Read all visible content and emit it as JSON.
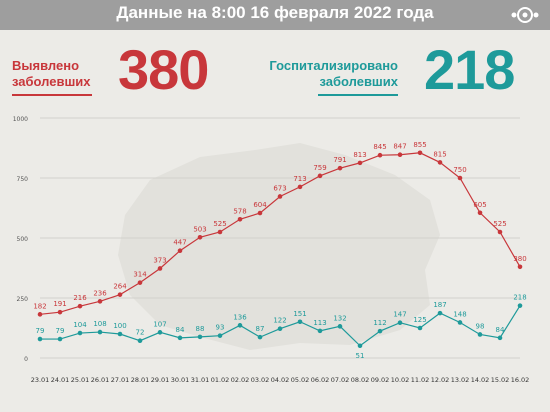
{
  "header": {
    "title": "Данные на 8:00 16 февраля 2022 года"
  },
  "stats": {
    "detected": {
      "label_line1": "Выявлено",
      "label_line2": "заболевших",
      "value": "380",
      "color": "#c8373b"
    },
    "hospitalized": {
      "label_line1": "Госпитализировано",
      "label_line2": "заболевших",
      "value": "218",
      "color": "#1e9a9a"
    }
  },
  "chart_data": {
    "type": "line",
    "x": [
      "23.01",
      "24.01",
      "25.01",
      "26.01",
      "27.01",
      "28.01",
      "29.01",
      "30.01",
      "31.01",
      "01.02",
      "02.02",
      "03.02",
      "04.02",
      "05.02",
      "06.02",
      "07.02",
      "08.02",
      "09.02",
      "10.02",
      "11.02",
      "12.02",
      "13.02",
      "14.02",
      "15.02",
      "16.02"
    ],
    "ylim": [
      0,
      1000
    ],
    "yticks": [
      0,
      250,
      500,
      750,
      1000
    ],
    "grid": true,
    "series": [
      {
        "color": "#c8373b",
        "values": [
          182,
          191,
          216,
          236,
          264,
          314,
          373,
          447,
          503,
          525,
          578,
          604,
          673,
          713,
          759,
          791,
          813,
          845,
          847,
          855,
          815,
          750,
          605,
          525,
          380
        ]
      },
      {
        "color": "#1e9a9a",
        "values": [
          79,
          79,
          104,
          108,
          100,
          72,
          107,
          84,
          88,
          93,
          136,
          87,
          122,
          151,
          113,
          132,
          51,
          112,
          147,
          125,
          187,
          148,
          98,
          84,
          218
        ]
      }
    ]
  }
}
